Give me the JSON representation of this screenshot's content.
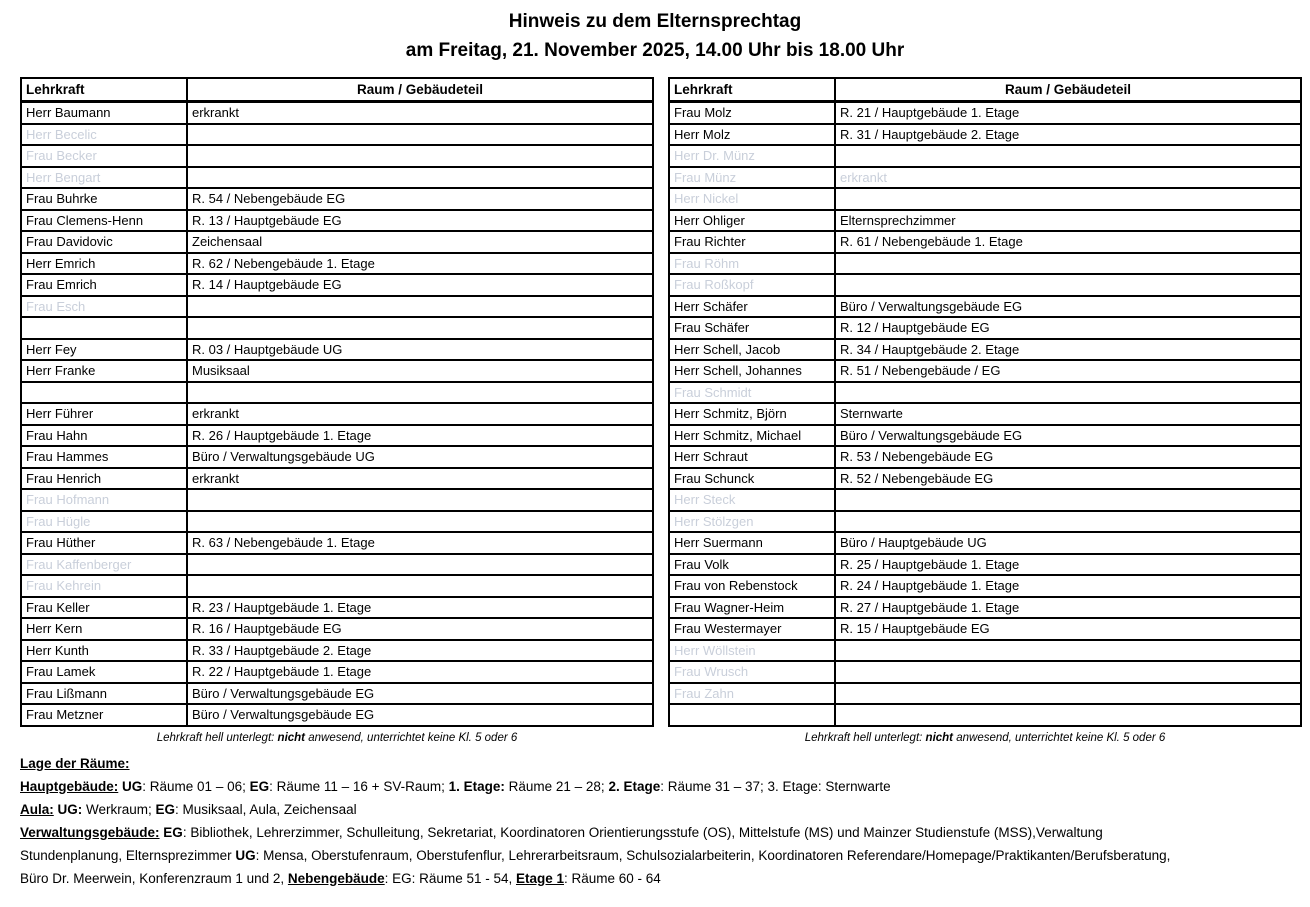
{
  "title": {
    "line1": "Hinweis zu dem Elternsprechtag",
    "line2": "am Freitag, 21. November 2025, 14.00 Uhr bis 18.00 Uhr"
  },
  "table_headers": {
    "teacher": "Lehrkraft",
    "room": "Raum / Gebäudeteil"
  },
  "footnote": {
    "prefix": "Lehrkraft hell unterlegt: ",
    "bold": "nicht",
    "suffix": " anwesend, unterrichtet keine Kl. 5 oder 6"
  },
  "colors": {
    "dimmed_text": "#c9cfda",
    "border": "#000000"
  },
  "tables": [
    {
      "side": "left",
      "rows": [
        {
          "name": "Herr Baumann",
          "room": "erkrankt",
          "dimmed": false
        },
        {
          "name": "Herr Becelic",
          "room": "",
          "dimmed": true
        },
        {
          "name": "Frau Becker",
          "room": "",
          "dimmed": true
        },
        {
          "name": "Herr Bengart",
          "room": "",
          "dimmed": true
        },
        {
          "name": "Frau Buhrke",
          "room": "R. 54 / Nebengebäude EG",
          "dimmed": false
        },
        {
          "name": "Frau Clemens-Henn",
          "room": "R. 13 / Hauptgebäude EG",
          "dimmed": false
        },
        {
          "name": "Frau Davidovic",
          "room": "Zeichensaal",
          "dimmed": false
        },
        {
          "name": "Herr Emrich",
          "room": "R. 62 / Nebengebäude 1. Etage",
          "dimmed": false
        },
        {
          "name": "Frau Emrich",
          "room": "R. 14 / Hauptgebäude EG",
          "dimmed": false
        },
        {
          "name": "Frau Esch",
          "room": "",
          "dimmed": true
        },
        {
          "name": "",
          "room": "",
          "dimmed": false
        },
        {
          "name": "Herr Fey",
          "room": "R. 03 / Hauptgebäude UG",
          "dimmed": false
        },
        {
          "name": "Herr Franke",
          "room": "Musiksaal",
          "dimmed": false
        },
        {
          "name": "",
          "room": "",
          "dimmed": false
        },
        {
          "name": "Herr Führer",
          "room": "erkrankt",
          "dimmed": false
        },
        {
          "name": "Frau Hahn",
          "room": "R. 26 / Hauptgebäude 1. Etage",
          "dimmed": false
        },
        {
          "name": "Frau Hammes",
          "room": "Büro / Verwaltungsgebäude UG",
          "dimmed": false
        },
        {
          "name": "Frau Henrich",
          "room": "erkrankt",
          "dimmed": false
        },
        {
          "name": "Frau Hofmann",
          "room": "",
          "dimmed": true
        },
        {
          "name": "Frau Hügle",
          "room": "",
          "dimmed": true
        },
        {
          "name": "Frau Hüther",
          "room": "R. 63  / Nebengebäude 1. Etage",
          "dimmed": false
        },
        {
          "name": "Frau Kaffenberger",
          "room": "",
          "dimmed": true
        },
        {
          "name": "Frau Kehrein",
          "room": "",
          "dimmed": true
        },
        {
          "name": "Frau Keller",
          "room": "R. 23 / Hauptgebäude 1. Etage",
          "dimmed": false
        },
        {
          "name": "Herr Kern",
          "room": "R. 16 / Hauptgebäude EG",
          "dimmed": false
        },
        {
          "name": "Herr Kunth",
          "room": "R. 33 / Hauptgebäude 2. Etage",
          "dimmed": false
        },
        {
          "name": "Frau Lamek",
          "room": "R. 22 / Hauptgebäude 1. Etage",
          "dimmed": false
        },
        {
          "name": "Frau Lißmann",
          "room": "Büro / Verwaltungsgebäude EG",
          "dimmed": false
        },
        {
          "name": "Frau Metzner",
          "room": "Büro / Verwaltungsgebäude EG",
          "dimmed": false
        }
      ]
    },
    {
      "side": "right",
      "rows": [
        {
          "name": "Frau Molz",
          "room": "R. 21 / Hauptgebäude 1. Etage",
          "dimmed": false
        },
        {
          "name": "Herr Molz",
          "room": "R. 31 / Hauptgebäude 2. Etage",
          "dimmed": false
        },
        {
          "name": "Herr Dr. Münz",
          "room": "",
          "dimmed": true
        },
        {
          "name": "Frau Münz",
          "room": "erkrankt",
          "dimmed": true
        },
        {
          "name": "Herr Nickel",
          "room": "",
          "dimmed": true
        },
        {
          "name": "Herr Ohliger",
          "room": "Elternsprechzimmer",
          "dimmed": false
        },
        {
          "name": "Frau Richter",
          "room": "R. 61 / Nebengebäude 1. Etage",
          "dimmed": false
        },
        {
          "name": "Frau Röhm",
          "room": "",
          "dimmed": true
        },
        {
          "name": "Frau Roßkopf",
          "room": "",
          "dimmed": true
        },
        {
          "name": "Herr Schäfer",
          "room": "Büro / Verwaltungsgebäude EG",
          "dimmed": false
        },
        {
          "name": "Frau Schäfer",
          "room": "R. 12 / Hauptgebäude EG",
          "dimmed": false
        },
        {
          "name": "Herr Schell, Jacob",
          "room": "R. 34 / Hauptgebäude 2. Etage",
          "dimmed": false
        },
        {
          "name": "Herr Schell, Johannes",
          "room": "R. 51 / Nebengebäude / EG",
          "dimmed": false
        },
        {
          "name": "Frau Schmidt",
          "room": "",
          "dimmed": true
        },
        {
          "name": "Herr Schmitz, Björn",
          "room": "Sternwarte",
          "dimmed": false
        },
        {
          "name": "Herr Schmitz, Michael",
          "room": "Büro / Verwaltungsgebäude EG",
          "dimmed": false
        },
        {
          "name": "Herr Schraut",
          "room": "R. 53 / Nebengebäude EG",
          "dimmed": false
        },
        {
          "name": "Frau Schunck",
          "room": "R. 52 / Nebengebäude EG",
          "dimmed": false
        },
        {
          "name": "Herr Steck",
          "room": "",
          "dimmed": true
        },
        {
          "name": "Herr Stölzgen",
          "room": "",
          "dimmed": true
        },
        {
          "name": "Herr Suermann",
          "room": "Büro / Hauptgebäude UG",
          "dimmed": false
        },
        {
          "name": "Frau Volk",
          "room": "R. 25 / Hauptgebäude 1. Etage",
          "dimmed": false
        },
        {
          "name": "Frau von Rebenstock",
          "room": "R. 24 / Hauptgebäude 1. Etage",
          "dimmed": false
        },
        {
          "name": "Frau Wagner-Heim",
          "room": "R. 27 / Hauptgebäude 1. Etage",
          "dimmed": false
        },
        {
          "name": "Frau Westermayer",
          "room": "R. 15 / Hauptgebäude  EG",
          "dimmed": false
        },
        {
          "name": "Herr Wöllstein",
          "room": "",
          "dimmed": true
        },
        {
          "name": "Frau Wrusch",
          "room": "",
          "dimmed": true
        },
        {
          "name": "Frau Zahn",
          "room": "",
          "dimmed": true
        },
        {
          "name": "",
          "room": "",
          "dimmed": false
        }
      ]
    }
  ],
  "legend": {
    "lines": [
      [
        {
          "t": "Lage der Räume:",
          "b": true,
          "u": true
        }
      ],
      [
        {
          "t": "Hauptgebäude:",
          "b": true,
          "u": true
        },
        {
          "t": " "
        },
        {
          "t": "UG",
          "b": true
        },
        {
          "t": ": Räume 01 – 06; "
        },
        {
          "t": "EG",
          "b": true
        },
        {
          "t": ": Räume 11 – 16 + SV-Raum; "
        },
        {
          "t": "1. Etage:",
          "b": true
        },
        {
          "t": " Räume 21 – 28; "
        },
        {
          "t": "2. Etage",
          "b": true
        },
        {
          "t": ": Räume 31 – 37; 3. Etage: Sternwarte"
        }
      ],
      [
        {
          "t": "Aula:",
          "b": true,
          "u": true
        },
        {
          "t": " "
        },
        {
          "t": "UG:",
          "b": true
        },
        {
          "t": " Werkraum; "
        },
        {
          "t": "EG",
          "b": true
        },
        {
          "t": ": Musiksaal, Aula, Zeichensaal"
        }
      ],
      [
        {
          "t": "Verwaltungsgebäude:",
          "b": true,
          "u": true
        },
        {
          "t": " "
        },
        {
          "t": "EG",
          "b": true
        },
        {
          "t": ": Bibliothek, Lehrerzimmer, Schulleitung, Sekretariat, Koordinatoren Orientierungsstufe (OS), Mittelstufe (MS) und Mainzer Studienstufe (MSS),Verwaltung"
        }
      ],
      [
        {
          "t": "Stundenplanung, Elternsprezimmer "
        },
        {
          "t": "UG",
          "b": true
        },
        {
          "t": ": Mensa, Oberstufenraum, Oberstufenflur, Lehrerarbeitsraum, Schulsozialarbeiterin, Koordinatoren Referendare/Homepage/Praktikanten/Berufsberatung,"
        }
      ],
      [
        {
          "t": "Büro Dr. Meerwein, Konferenzraum 1 und 2, "
        },
        {
          "t": "Nebengebäude",
          "b": true,
          "u": true
        },
        {
          "t": ": EG: Räume 51 - 54, "
        },
        {
          "t": "Etage 1",
          "b": true,
          "u": true
        },
        {
          "t": ": Räume 60 - 64"
        }
      ]
    ]
  }
}
